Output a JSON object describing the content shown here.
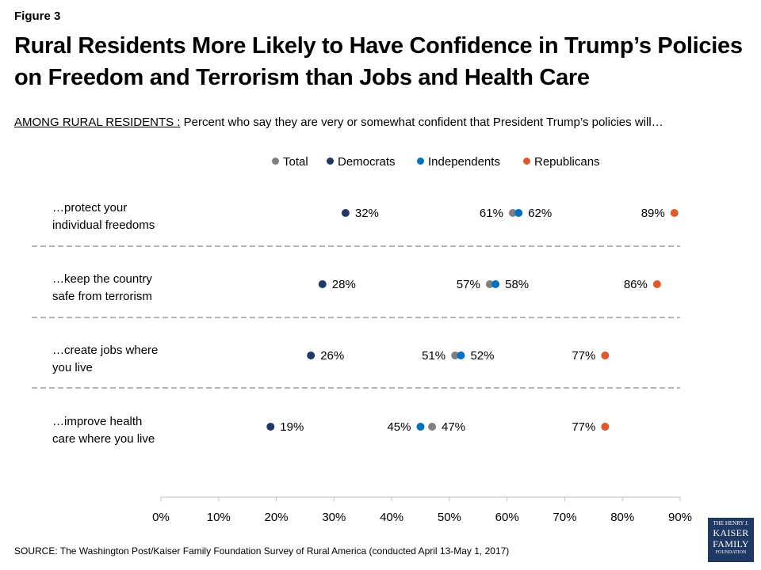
{
  "header": {
    "figure_label": "Figure 3",
    "title": "Rural Residents More Likely to Have Confidence in Trump’s Policies on Freedom and Terrorism than Jobs and Health Care",
    "subtitle_lead": "AMONG RURAL RESIDENTS :",
    "subtitle_rest": " Percent who say they are very or somewhat confident that President Trump’s policies will…"
  },
  "legend": {
    "total": "Total",
    "democrats": "Democrats",
    "independents": "Independents",
    "republicans": "Republicans"
  },
  "colors": {
    "total": "#808080",
    "democrats": "#1f3864",
    "independents": "#0070c0",
    "republicans": "#e0592a"
  },
  "source": "SOURCE: The Washington Post/Kaiser Family Foundation Survey of Rural America (conducted April 13-May 1, 2017)",
  "logo": {
    "line1": "THE HENRY J.",
    "line2": "KAISER",
    "line3": "FAMILY",
    "line4": "FOUNDATION"
  },
  "chart_data": {
    "type": "scatter",
    "title": "Rural Residents More Likely to Have Confidence in Trump’s Policies on Freedom and Terrorism than Jobs and Health Care",
    "xlabel": "",
    "ylabel": "",
    "xlim": [
      0,
      90
    ],
    "x_ticks": [
      "0%",
      "10%",
      "20%",
      "30%",
      "40%",
      "50%",
      "60%",
      "70%",
      "80%",
      "90%"
    ],
    "legend_position": "top",
    "grid": false,
    "categories": [
      "…protect your individual freedoms",
      "…keep the country safe from terrorism",
      "…create jobs where you live",
      "…improve health care where you live"
    ],
    "category_lines": [
      [
        "…protect your",
        "individual freedoms"
      ],
      [
        "…keep the country",
        "safe from terrorism"
      ],
      [
        "…create jobs where",
        "you live"
      ],
      [
        "…improve health",
        "care where you live"
      ]
    ],
    "series": [
      {
        "name": "Total",
        "key": "total",
        "values": [
          61,
          57,
          51,
          47
        ]
      },
      {
        "name": "Democrats",
        "key": "democrats",
        "values": [
          32,
          28,
          26,
          19
        ]
      },
      {
        "name": "Independents",
        "key": "independents",
        "values": [
          62,
          58,
          52,
          45
        ]
      },
      {
        "name": "Republicans",
        "key": "republicans",
        "values": [
          89,
          86,
          77,
          77
        ]
      }
    ]
  }
}
